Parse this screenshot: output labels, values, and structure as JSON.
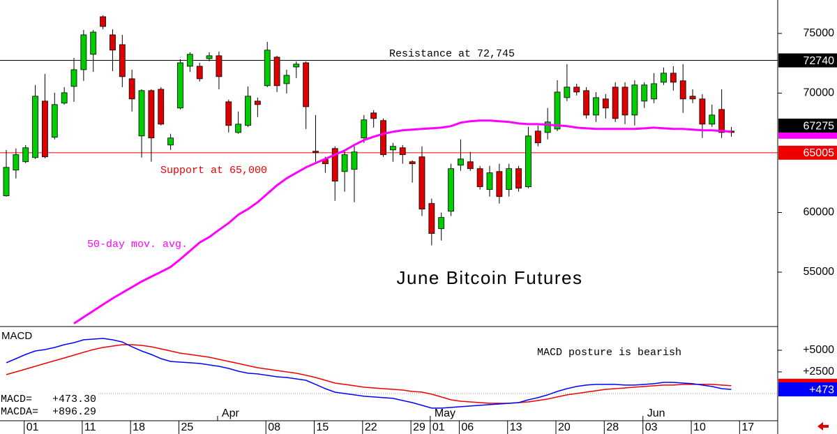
{
  "chart_data": [
    {
      "type": "candlestick",
      "title": "June Bitcoin Futures",
      "categories": [
        null,
        null,
        "01",
        null,
        null,
        null,
        null,
        null,
        "11",
        null,
        null,
        null,
        null,
        "18",
        null,
        null,
        null,
        null,
        "25",
        null,
        null,
        null,
        null,
        null,
        null,
        null,
        null,
        "08",
        null,
        null,
        null,
        null,
        "15",
        null,
        null,
        null,
        null,
        "22",
        null,
        null,
        null,
        null,
        "29",
        null,
        "01",
        null,
        null,
        "06",
        null,
        null,
        null,
        null,
        "13",
        null,
        null,
        null,
        null,
        "20",
        null,
        null,
        null,
        null,
        "28",
        null,
        null,
        null,
        "03",
        null,
        null,
        null,
        null,
        "10",
        null,
        null,
        null,
        null,
        "17"
      ],
      "months": [
        null,
        null,
        null,
        null,
        null,
        null,
        null,
        null,
        null,
        null,
        null,
        null,
        null,
        null,
        null,
        null,
        null,
        null,
        null,
        null,
        null,
        null,
        "Apr",
        null,
        null,
        null,
        null,
        null,
        null,
        null,
        null,
        null,
        null,
        null,
        null,
        null,
        null,
        null,
        null,
        null,
        null,
        null,
        null,
        null,
        "May",
        null,
        null,
        null,
        null,
        null,
        null,
        null,
        null,
        null,
        null,
        null,
        null,
        null,
        null,
        null,
        null,
        null,
        null,
        null,
        null,
        null,
        "Jun",
        null,
        null,
        null,
        null,
        null,
        null,
        null,
        null,
        null,
        null
      ],
      "open": [
        61390,
        63550,
        64250,
        64600,
        69330,
        66300,
        69160,
        70560,
        71960,
        73250,
        76400,
        74880,
        74060,
        71200,
        66410,
        70210,
        70320,
        65650,
        68750,
        72250,
        72250,
        72890,
        73130,
        69270,
        66700,
        67290,
        69330,
        70620,
        73010,
        70790,
        72190,
        72540,
        65130,
        64430,
        65360,
        63430,
        63610,
        66240,
        68340,
        67700,
        65240,
        65420,
        64250,
        64660,
        60750,
        58640,
        60100,
        63960,
        64250,
        63670,
        61920,
        63430,
        61920,
        63670,
        62150,
        66820,
        66700,
        66990,
        69620,
        70500,
        70210,
        68160,
        69510,
        70500,
        70500,
        68160,
        69330,
        69510,
        70910,
        71670,
        71030,
        69740,
        69510,
        67400,
        68630,
        66820,
        null
      ],
      "high": [
        65240,
        65360,
        65650,
        70680,
        71610,
        70030,
        70500,
        72950,
        75290,
        75290,
        76520,
        75350,
        74880,
        71960,
        70320,
        70320,
        70500,
        66590,
        72840,
        73420,
        72540,
        73420,
        73480,
        69450,
        68460,
        70560,
        69620,
        74300,
        73130,
        71960,
        72660,
        72660,
        68160,
        64660,
        65540,
        65240,
        65540,
        68160,
        68570,
        67870,
        65830,
        65650,
        64370,
        65540,
        61160,
        59990,
        64080,
        66120,
        65070,
        63900,
        63900,
        64080,
        64080,
        63900,
        67170,
        67290,
        68750,
        71080,
        72430,
        70790,
        70500,
        70090,
        69920,
        70910,
        70910,
        71080,
        70910,
        71670,
        72140,
        72250,
        72430,
        70320,
        69920,
        69040,
        70320,
        67170,
        null
      ],
      "low": [
        61330,
        62850,
        64130,
        64480,
        64540,
        66120,
        69040,
        69270,
        71030,
        71780,
        75350,
        71840,
        70500,
        68460,
        64600,
        64250,
        67290,
        65240,
        68630,
        71780,
        70970,
        72660,
        70320,
        66700,
        66590,
        67170,
        67990,
        70500,
        70090,
        69970,
        71260,
        66990,
        64250,
        63320,
        60980,
        61740,
        60860,
        65830,
        67110,
        64660,
        64250,
        64080,
        62500,
        59700,
        57240,
        57650,
        59700,
        63490,
        63490,
        61920,
        61330,
        60750,
        61330,
        61740,
        62030,
        65540,
        66120,
        66820,
        69330,
        69800,
        67870,
        67580,
        67870,
        67580,
        67400,
        67290,
        68750,
        69160,
        70680,
        70210,
        68340,
        69160,
        66240,
        67170,
        66240,
        66350,
        null
      ],
      "close": [
        63780,
        64840,
        65420,
        69740,
        64660,
        69040,
        70030,
        71960,
        74880,
        75110,
        75580,
        73600,
        71380,
        69510,
        70210,
        66240,
        67400,
        66240,
        72540,
        73250,
        71200,
        73130,
        71380,
        67290,
        67400,
        69740,
        69040,
        73600,
        70620,
        71490,
        72430,
        68860,
        65010,
        64080,
        62620,
        64840,
        65070,
        67760,
        67870,
        64840,
        65540,
        64840,
        64080,
        60280,
        58240,
        59580,
        63670,
        64480,
        63670,
        62150,
        63320,
        61330,
        63670,
        62030,
        66410,
        65830,
        67580,
        70090,
        70500,
        70090,
        68160,
        69620,
        68750,
        67870,
        68160,
        70680,
        70680,
        70790,
        71670,
        70910,
        69510,
        69510,
        67400,
        68160,
        66700,
        66700,
        null
      ],
      "up_color": "#00cc00",
      "down_color": "#dd0000",
      "series": [
        {
          "name": "50-day mov. avg.",
          "color": "#ff00ff",
          "values": [
            null,
            null,
            null,
            null,
            null,
            null,
            null,
            50700,
            51230,
            51750,
            52280,
            52800,
            53270,
            53740,
            54210,
            54620,
            55020,
            55430,
            56080,
            56780,
            57480,
            57940,
            58530,
            59110,
            59810,
            60280,
            60860,
            61560,
            62270,
            62850,
            63320,
            63780,
            64130,
            64480,
            64840,
            65190,
            65650,
            66060,
            66350,
            66590,
            66760,
            66880,
            66940,
            67000,
            67050,
            67110,
            67230,
            67520,
            67640,
            67700,
            67700,
            67640,
            67580,
            67460,
            67400,
            67400,
            67350,
            67290,
            67230,
            67110,
            67050,
            67000,
            67000,
            67000,
            67000,
            67000,
            67050,
            67110,
            67050,
            67000,
            67000,
            66940,
            66880,
            66880,
            66820,
            66760,
            null
          ]
        }
      ],
      "ylim": [
        50440,
        77800
      ],
      "yticks": [
        55000,
        60000,
        70000,
        75000
      ],
      "hlines": [
        {
          "value": 72745,
          "color": "#000000"
        },
        {
          "value": 65005,
          "color": "#ee0000"
        }
      ],
      "annotations": [
        {
          "text": "Resistance at 72,745",
          "color": "#000000"
        },
        {
          "text": "Support at 65,000",
          "color": "#ee0000"
        }
      ],
      "price_tags": [
        {
          "value": 72740,
          "color": "#000000"
        },
        {
          "value": 67275,
          "color": "#000000"
        },
        {
          "value": 65005,
          "color": "#ee0000"
        }
      ]
    },
    {
      "type": "line",
      "title": "MACD",
      "note": "MACD posture is bearish",
      "series": [
        {
          "color": "#0000ff",
          "values": [
            3550,
            4030,
            4510,
            4920,
            5080,
            5320,
            5640,
            5880,
            6210,
            6290,
            6370,
            6210,
            5960,
            5400,
            4920,
            4510,
            4030,
            3710,
            3630,
            3550,
            3470,
            3300,
            3140,
            2900,
            2580,
            2340,
            2260,
            2100,
            1930,
            1850,
            1690,
            1530,
            1050,
            560,
            160,
            0,
            -160,
            -320,
            -400,
            -480,
            -560,
            -810,
            -1050,
            -1370,
            -1690,
            -1690,
            -1610,
            -1530,
            -1450,
            -1370,
            -1290,
            -1210,
            -1130,
            -1050,
            -730,
            -480,
            -160,
            240,
            560,
            810,
            970,
            1050,
            1050,
            1050,
            970,
            970,
            1050,
            1130,
            1290,
            1290,
            1210,
            1130,
            970,
            810,
            560,
            473.3,
            null
          ]
        },
        {
          "color": "#ee0000",
          "values": [
            2180,
            2500,
            2820,
            3140,
            3470,
            3790,
            4110,
            4430,
            4760,
            5080,
            5320,
            5480,
            5640,
            5640,
            5560,
            5400,
            5160,
            4920,
            4670,
            4510,
            4350,
            4190,
            3950,
            3710,
            3470,
            3220,
            2980,
            2820,
            2660,
            2500,
            2340,
            2100,
            1850,
            1530,
            1210,
            1050,
            890,
            730,
            640,
            560,
            480,
            400,
            240,
            160,
            -80,
            -400,
            -730,
            -890,
            -970,
            -1050,
            -1130,
            -1130,
            -1130,
            -1050,
            -970,
            -810,
            -640,
            -400,
            -160,
            0,
            160,
            320,
            480,
            560,
            640,
            730,
            810,
            890,
            970,
            970,
            1050,
            1050,
            1050,
            1050,
            970,
            896.29,
            null
          ]
        }
      ],
      "readouts": [
        {
          "label": "MACD=",
          "value": 473.3,
          "value_label": "+473.30"
        },
        {
          "label": "MACDA=",
          "value": 896.29,
          "value_label": "+896.29"
        }
      ],
      "ylim": [
        -3150,
        7740
      ],
      "yticks": [
        {
          "value": 5000,
          "label": "+5000"
        },
        {
          "value": 2500,
          "label": "+2500"
        }
      ],
      "price_tags": [
        {
          "value": 473.3,
          "label": "+473",
          "color": "#0000ff"
        }
      ]
    }
  ]
}
